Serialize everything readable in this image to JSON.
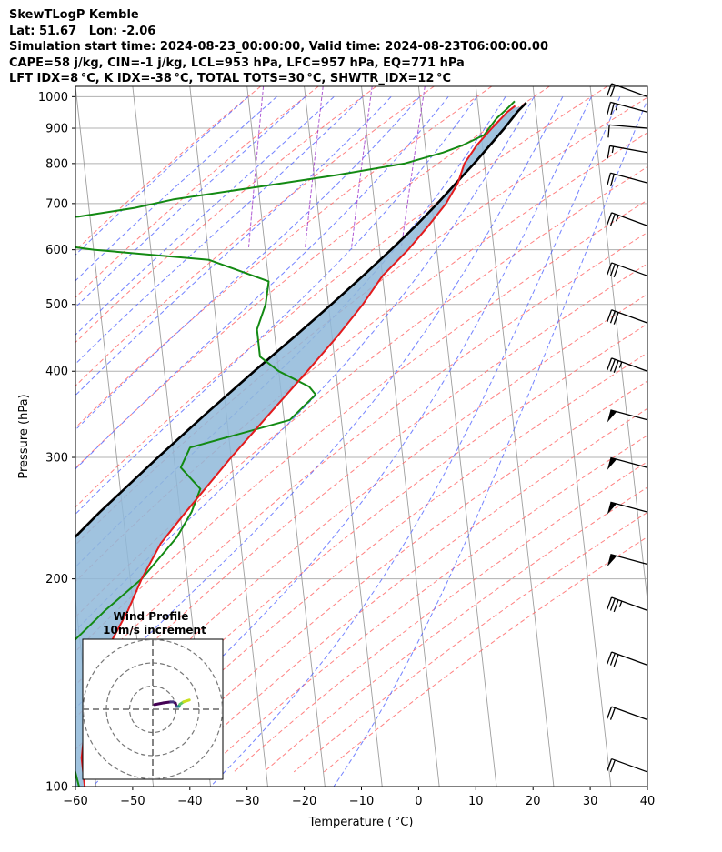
{
  "header": {
    "line1": "SkewTLogP Kemble",
    "line2": "Lat: 51.67   Lon: -2.06",
    "line3": "Simulation start time: 2024-08-23_00:00:00, Valid time: 2024-08-23T06:00:00.00",
    "line4": "CAPE=58 j/kg, CIN=-1 j/kg, LCL=953 hPa, LFC=957 hPa, EQ=771 hPa",
    "line5": "LFT IDX=8 °C, K IDX=-38 °C, TOTAL TOTS=30 °C, SHWTR_IDX=12 °C"
  },
  "colors": {
    "temperature": "#e31a1c",
    "dewpoint": "#138a13",
    "parcel": "#000000",
    "cape_fill": "#8fb9d9",
    "dry_adiabat": "#ff6b6b",
    "moist_adiabat": "#5a6cff",
    "mixing_ratio": "#9b30c8",
    "isotherm": "#9e9e9e"
  },
  "chart_data": {
    "type": "skewt",
    "xlabel": "Temperature ( °C)",
    "ylabel": "Pressure (hPa)",
    "xlim": [
      -60,
      40
    ],
    "ylim": [
      1035,
      100
    ],
    "yscale": "log",
    "x_ticks": [
      "−60",
      "−50",
      "−40",
      "−30",
      "−20",
      "−10",
      "0",
      "10",
      "20",
      "30",
      "40"
    ],
    "y_ticks": [
      100,
      200,
      300,
      400,
      500,
      600,
      700,
      800,
      900,
      1000
    ],
    "grid": true,
    "series": {
      "temperature": {
        "p": [
          970,
          950,
          900,
          850,
          800,
          750,
          700,
          650,
          600,
          550,
          500,
          450,
          400,
          350,
          300,
          250,
          225,
          200,
          180,
          160,
          140,
          120,
          110,
          100
        ],
        "t": [
          16.5,
          15,
          12,
          9,
          6.5,
          5,
          2.5,
          -1,
          -5,
          -10,
          -14,
          -19,
          -25,
          -32,
          -40,
          -49,
          -54,
          -58,
          -61,
          -65,
          -68,
          -71,
          -72,
          -72
        ]
      },
      "dewpoint": {
        "p": [
          985,
          960,
          930,
          880,
          850,
          830,
          800,
          770,
          740,
          710,
          690,
          670,
          660,
          640,
          600,
          580,
          540,
          500,
          460,
          420,
          400,
          380,
          370,
          340,
          310,
          290,
          270,
          250,
          230,
          200,
          180,
          160,
          150,
          100
        ],
        "t": [
          16.5,
          15,
          13,
          10.5,
          6.5,
          3,
          -4,
          -16,
          -30,
          -45,
          -52,
          -62,
          -75,
          -85,
          -60,
          -40,
          -30,
          -31,
          -33,
          -33,
          -30,
          -25,
          -24,
          -29,
          -47,
          -49,
          -46,
          -48,
          -51,
          -58,
          -65,
          -72,
          -76,
          -73
        ]
      },
      "parcel": {
        "p": [
          980,
          953,
          900,
          850,
          800,
          750,
          700,
          650,
          600,
          550,
          500,
          450,
          400,
          350,
          300,
          250,
          200,
          150,
          100
        ],
        "t": [
          18.5,
          16.9,
          14.2,
          11.3,
          8.2,
          4.7,
          1.0,
          -3.2,
          -8.0,
          -13.4,
          -19.5,
          -26.4,
          -34.3,
          -43.0,
          -52.8,
          -64.0,
          -76.9,
          -92.5,
          -112.0
        ]
      }
    },
    "wind_barbs": {
      "p": [
        105,
        125,
        150,
        180,
        210,
        250,
        290,
        340,
        400,
        470,
        550,
        650,
        750,
        830,
        900,
        950,
        1000
      ],
      "dir": [
        250,
        250,
        250,
        250,
        255,
        255,
        255,
        255,
        250,
        250,
        250,
        250,
        255,
        260,
        265,
        255,
        250
      ],
      "kts": [
        20,
        20,
        30,
        35,
        50,
        50,
        50,
        50,
        35,
        30,
        30,
        25,
        20,
        15,
        10,
        25,
        20
      ]
    },
    "inset": {
      "title": "Wind Profile",
      "subtitle": "10m/s increment",
      "rings_ms": [
        10,
        20,
        30
      ],
      "hodograph_u": [
        -11,
        -7,
        -4,
        -3,
        -2,
        -1.5,
        -0.5,
        0,
        1.5,
        4
      ],
      "hodograph_v": [
        2,
        2.8,
        3.2,
        3.2,
        2.7,
        1.2,
        1.2,
        2.2,
        3.2,
        4
      ]
    }
  }
}
